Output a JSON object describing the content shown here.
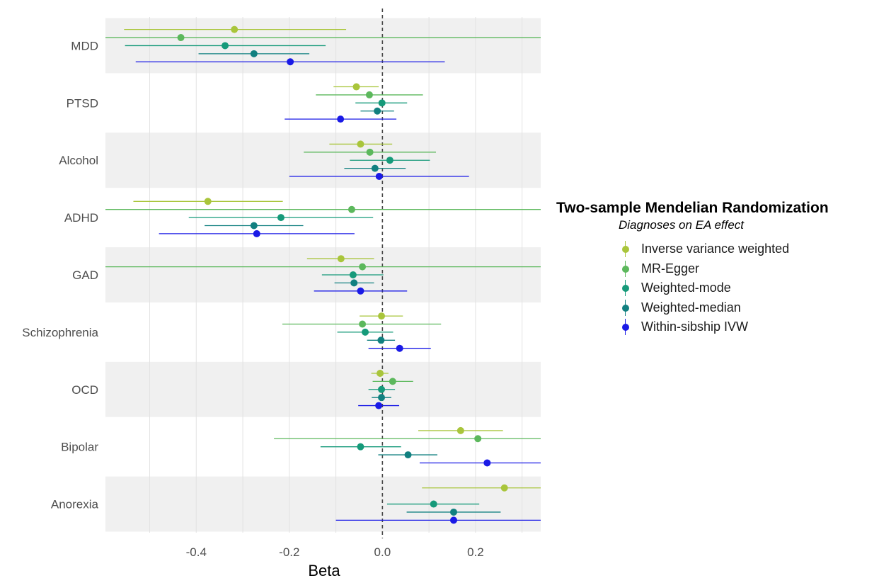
{
  "chart_data": {
    "type": "forest",
    "xlabel": "Beta",
    "ylabel": "",
    "xlim": [
      -0.595,
      0.34
    ],
    "xticks": [
      -0.4,
      -0.2,
      0.0,
      0.2
    ],
    "xtick_labels": [
      "-0.4",
      "-0.2",
      "0.0",
      "0.2"
    ],
    "reference_line": 0,
    "grid": "vertical",
    "legend_position": "right",
    "legend_title": "Two-sample Mendelian Randomization",
    "legend_subtitle": "Diagnoses on EA effect",
    "categories": [
      "MDD",
      "PTSD",
      "Alcohol",
      "ADHD",
      "GAD",
      "Schizophrenia",
      "OCD",
      "Bipolar",
      "Anorexia"
    ],
    "series": [
      {
        "name": "Inverse variance weighted",
        "color": "#a9c53b",
        "beta": [
          -0.318,
          -0.056,
          -0.047,
          -0.375,
          -0.089,
          -0.002,
          -0.005,
          0.168,
          0.262
        ],
        "lower": [
          -0.555,
          -0.105,
          -0.114,
          -0.535,
          -0.162,
          -0.049,
          -0.024,
          0.077,
          0.085
        ],
        "upper": [
          -0.078,
          -0.008,
          0.021,
          -0.214,
          -0.018,
          0.044,
          0.013,
          0.259,
          0.34
        ]
      },
      {
        "name": "MR-Egger",
        "color": "#5cb85c",
        "beta": [
          -0.433,
          -0.028,
          -0.027,
          -0.066,
          -0.043,
          -0.043,
          0.022,
          0.205,
          null
        ],
        "lower": [
          -0.595,
          -0.143,
          -0.169,
          -0.595,
          -0.595,
          -0.215,
          -0.021,
          -0.233,
          null
        ],
        "upper": [
          0.34,
          0.087,
          0.115,
          0.34,
          0.34,
          0.126,
          0.066,
          0.34,
          null
        ]
      },
      {
        "name": "Weighted-mode",
        "color": "#169a7a",
        "beta": [
          -0.338,
          -0.001,
          0.016,
          -0.218,
          -0.063,
          -0.037,
          -0.002,
          -0.047,
          0.11
        ],
        "lower": [
          -0.553,
          -0.058,
          -0.07,
          -0.416,
          -0.13,
          -0.097,
          -0.03,
          -0.133,
          0.01
        ],
        "upper": [
          -0.122,
          0.053,
          0.102,
          -0.02,
          0.002,
          0.023,
          0.027,
          0.04,
          0.208
        ]
      },
      {
        "name": "Weighted-median",
        "color": "#118080",
        "beta": [
          -0.276,
          -0.011,
          -0.016,
          -0.276,
          -0.061,
          -0.003,
          -0.002,
          0.055,
          0.153
        ],
        "lower": [
          -0.395,
          -0.047,
          -0.082,
          -0.382,
          -0.103,
          -0.033,
          -0.023,
          -0.009,
          0.052
        ],
        "upper": [
          -0.157,
          0.025,
          0.05,
          -0.17,
          -0.018,
          0.027,
          0.019,
          0.118,
          0.254
        ]
      },
      {
        "name": "Within-sibship IVW",
        "color": "#1a1ae6",
        "beta": [
          -0.198,
          -0.09,
          -0.007,
          -0.27,
          -0.047,
          0.037,
          -0.008,
          0.225,
          0.153
        ],
        "lower": [
          -0.53,
          -0.21,
          -0.2,
          -0.48,
          -0.147,
          -0.03,
          -0.052,
          0.08,
          -0.1
        ],
        "upper": [
          0.134,
          0.03,
          0.186,
          -0.06,
          0.053,
          0.104,
          0.036,
          0.34,
          0.34
        ]
      }
    ]
  }
}
